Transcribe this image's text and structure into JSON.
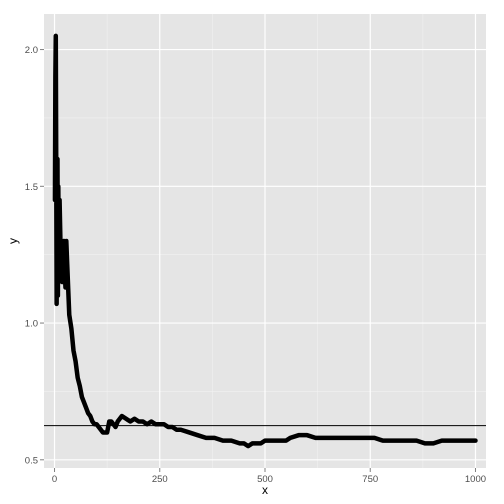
{
  "chart_data": {
    "type": "line",
    "title": "",
    "xlabel": "x",
    "ylabel": "y",
    "xlim": [
      -25,
      1025
    ],
    "ylim": [
      0.47,
      2.13
    ],
    "x_ticks": [
      0,
      250,
      500,
      750,
      1000
    ],
    "y_ticks": [
      0.5,
      1.0,
      1.5,
      2.0
    ],
    "x_tick_labels": [
      "0",
      "250",
      "500",
      "750",
      "1000"
    ],
    "y_tick_labels": [
      "0.5",
      "1.0",
      "1.5",
      "2.0"
    ],
    "grid": true,
    "legend": "none",
    "reference_line": {
      "y": 0.625,
      "color": "#000000"
    },
    "series": [
      {
        "color": "#000000",
        "x": [
          1,
          2,
          3,
          4,
          5,
          6,
          7,
          8,
          9,
          10,
          12,
          14,
          16,
          18,
          20,
          22,
          24,
          26,
          28,
          30,
          35,
          40,
          45,
          50,
          55,
          60,
          65,
          70,
          75,
          80,
          85,
          90,
          95,
          100,
          105,
          110,
          115,
          120,
          125,
          130,
          135,
          140,
          145,
          150,
          160,
          170,
          180,
          190,
          200,
          210,
          220,
          230,
          240,
          250,
          260,
          270,
          280,
          290,
          300,
          320,
          340,
          360,
          380,
          400,
          420,
          440,
          450,
          460,
          470,
          480,
          490,
          500,
          520,
          540,
          550,
          560,
          580,
          600,
          620,
          640,
          660,
          680,
          700,
          720,
          740,
          760,
          780,
          800,
          820,
          840,
          860,
          880,
          900,
          920,
          940,
          960,
          980,
          1000
        ],
        "y": [
          1.45,
          1.9,
          2.05,
          1.6,
          1.07,
          1.35,
          1.6,
          1.1,
          1.5,
          1.3,
          1.45,
          1.3,
          1.25,
          1.15,
          1.25,
          1.3,
          1.2,
          1.13,
          1.3,
          1.22,
          1.03,
          0.98,
          0.9,
          0.86,
          0.8,
          0.77,
          0.73,
          0.71,
          0.69,
          0.67,
          0.66,
          0.64,
          0.63,
          0.63,
          0.62,
          0.61,
          0.6,
          0.6,
          0.6,
          0.64,
          0.64,
          0.63,
          0.62,
          0.64,
          0.66,
          0.65,
          0.64,
          0.65,
          0.64,
          0.64,
          0.63,
          0.64,
          0.63,
          0.63,
          0.63,
          0.62,
          0.62,
          0.61,
          0.61,
          0.6,
          0.59,
          0.58,
          0.58,
          0.57,
          0.57,
          0.56,
          0.56,
          0.55,
          0.56,
          0.56,
          0.56,
          0.57,
          0.57,
          0.57,
          0.57,
          0.58,
          0.59,
          0.59,
          0.58,
          0.58,
          0.58,
          0.58,
          0.58,
          0.58,
          0.58,
          0.58,
          0.57,
          0.57,
          0.57,
          0.57,
          0.57,
          0.56,
          0.56,
          0.57,
          0.57,
          0.57,
          0.57,
          0.57
        ]
      }
    ]
  }
}
